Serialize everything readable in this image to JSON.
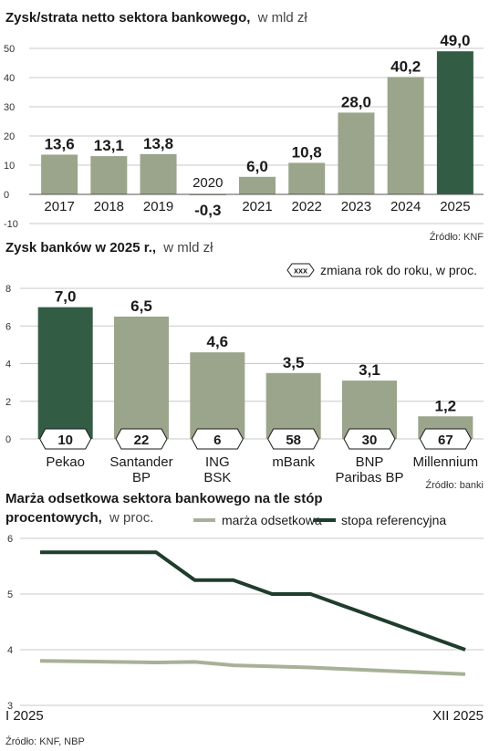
{
  "colors": {
    "bar": "#9aa58c",
    "highlight": "#335c45",
    "grid": "#c9c9c9",
    "axis": "#555555",
    "line_margin": "#a7b197",
    "line_rate": "#1f3d2b"
  },
  "chart_data": [
    {
      "type": "bar",
      "title": "Zysk/strata netto sektora bankowego,",
      "title_unit": "w mld zł",
      "categories": [
        "2017",
        "2018",
        "2019",
        "2020",
        "2021",
        "2022",
        "2023",
        "2024",
        "2025"
      ],
      "values": [
        13.6,
        13.1,
        13.8,
        -0.3,
        6.0,
        10.8,
        28.0,
        40.2,
        49.0
      ],
      "value_labels": [
        "13,6",
        "13,1",
        "13,8",
        "-0,3",
        "6,0",
        "10,8",
        "28,0",
        "40,2",
        "49,0"
      ],
      "highlight_index": 8,
      "ylim": [
        -10,
        50
      ],
      "yticks": [
        "-10",
        "0",
        "10",
        "20",
        "30",
        "40",
        "50"
      ],
      "ytick_values": [
        -10,
        0,
        10,
        20,
        30,
        40,
        50
      ],
      "source": "Źródło: KNF"
    },
    {
      "type": "bar",
      "title": "Zysk banków w 2025 r.,",
      "title_unit": "w mld zł",
      "legend_symbol": "xxx",
      "legend_text": "zmiana rok do roku, w proc.",
      "categories": [
        [
          "Pekao"
        ],
        [
          "Santander",
          "BP"
        ],
        [
          "ING",
          "BSK"
        ],
        [
          "mBank"
        ],
        [
          "BNP",
          "Paribas BP"
        ],
        [
          "Millennium"
        ]
      ],
      "values": [
        7.0,
        6.5,
        4.6,
        3.5,
        3.1,
        1.2
      ],
      "value_labels": [
        "7,0",
        "6,5",
        "4,6",
        "3,5",
        "3,1",
        "1,2"
      ],
      "yoy_change": [
        "10",
        "22",
        "6",
        "58",
        "30",
        "67"
      ],
      "highlight_index": 0,
      "ylim": [
        0,
        8
      ],
      "yticks": [
        "0",
        "2",
        "4",
        "6",
        "8"
      ],
      "ytick_values": [
        0,
        2,
        4,
        6,
        8
      ],
      "source": "Źródło: banki"
    },
    {
      "type": "line",
      "title_line1": "Marża odsetkowa sektora bankowego na tle stóp",
      "title_line2": "procentowych,",
      "title_unit": "w proc.",
      "x_labels": [
        "I 2025",
        "XII 2025"
      ],
      "x": [
        1,
        2,
        3,
        4,
        5,
        6,
        7,
        8,
        9,
        10,
        11,
        12
      ],
      "series": [
        {
          "name": "marża odsetkowa",
          "values": [
            3.8,
            3.79,
            3.78,
            3.77,
            3.78,
            3.72,
            3.7,
            3.68,
            3.65,
            3.62,
            3.59,
            3.56
          ]
        },
        {
          "name": "stopa referencyjna",
          "values": [
            5.75,
            5.75,
            5.75,
            5.75,
            5.25,
            5.25,
            5.0,
            5.0,
            4.75,
            4.5,
            4.25,
            4.0
          ]
        }
      ],
      "ylim": [
        3,
        6
      ],
      "yticks": [
        "3",
        "4",
        "5",
        "6"
      ],
      "ytick_values": [
        3,
        4,
        5,
        6
      ],
      "source": "Źródło: KNF, NBP"
    }
  ]
}
